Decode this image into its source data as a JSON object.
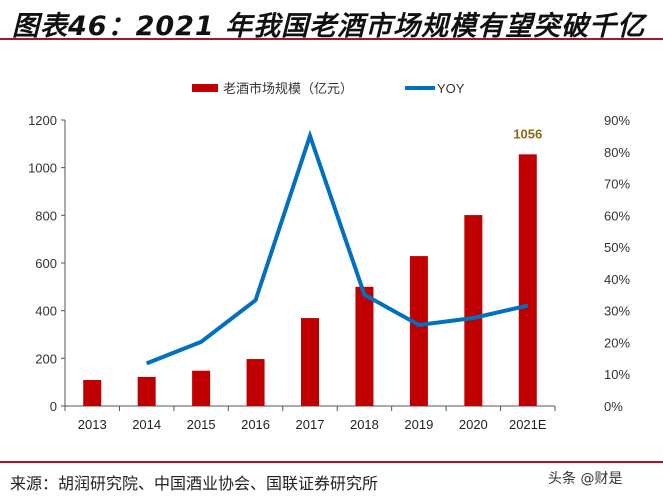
{
  "title": "图表46：2021 年我国老酒市场规模有望突破千亿",
  "source": "来源：胡润研究院、中国酒业协会、国联证券研究所",
  "watermark": "头条 @财是",
  "chart_data": {
    "type": "bar+line",
    "categories": [
      "2013",
      "2014",
      "2015",
      "2016",
      "2017",
      "2018",
      "2019",
      "2020",
      "2021E"
    ],
    "series": [
      {
        "name": "老酒市场规模（亿元）",
        "type": "bar",
        "axis": "left",
        "color": "#c00000",
        "values": [
          109,
          122,
          148,
          197,
          369,
          500,
          629,
          801,
          1056
        ]
      },
      {
        "name": "YOY",
        "type": "line",
        "axis": "right",
        "color": "#0070c0",
        "values": [
          null,
          13.4,
          20.2,
          33.3,
          85.0,
          35.0,
          25.5,
          27.7,
          31.6
        ]
      }
    ],
    "data_labels": [
      {
        "category": "2021E",
        "text": "1056",
        "color": "#8b6914"
      }
    ],
    "y_left": {
      "range": [
        0,
        1200
      ],
      "ticks": [
        "0",
        "200",
        "400",
        "600",
        "800",
        "1000",
        "1200"
      ]
    },
    "y_right": {
      "range": [
        0,
        90
      ],
      "ticks": [
        "0%",
        "10%",
        "20%",
        "30%",
        "40%",
        "50%",
        "60%",
        "70%",
        "80%",
        "90%"
      ]
    },
    "legend": "top",
    "grid": false
  }
}
